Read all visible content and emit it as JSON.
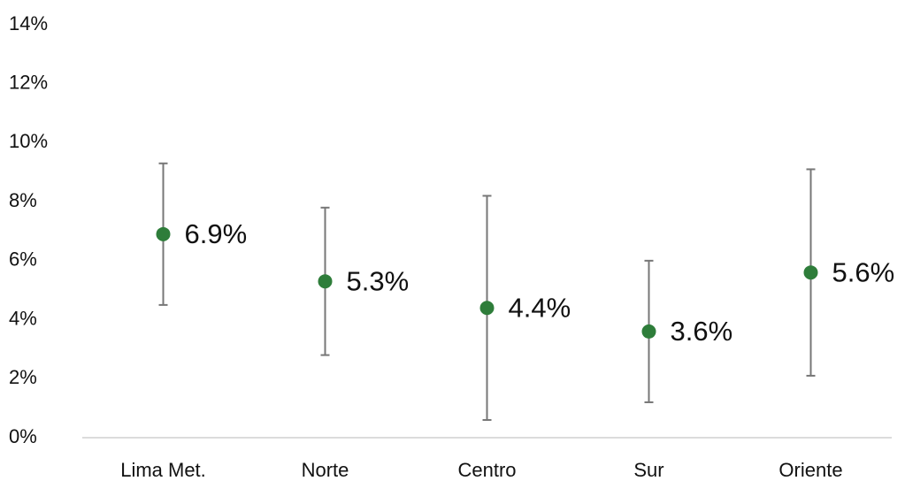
{
  "chart_data": {
    "type": "errorbar",
    "categories": [
      "Lima Met.",
      "Norte",
      "Centro",
      "Sur",
      "Oriente"
    ],
    "values": [
      6.9,
      5.3,
      4.4,
      3.6,
      5.6
    ],
    "value_labels": [
      "6.9%",
      "5.3%",
      "4.4%",
      "3.6%",
      "5.6%"
    ],
    "errors": [
      2.4,
      2.5,
      3.8,
      2.4,
      3.5
    ],
    "color": "#2e7d3a",
    "error_color": "#777777",
    "ylim": [
      0,
      14
    ],
    "yticks": [
      {
        "value": 0,
        "label": "0%"
      },
      {
        "value": 2,
        "label": "2%"
      },
      {
        "value": 4,
        "label": "4%"
      },
      {
        "value": 6,
        "label": "6%"
      },
      {
        "value": 8,
        "label": "8%"
      },
      {
        "value": 10,
        "label": "10%"
      },
      {
        "value": 12,
        "label": "12%"
      },
      {
        "value": 14,
        "label": "14%"
      }
    ],
    "grid": false
  }
}
